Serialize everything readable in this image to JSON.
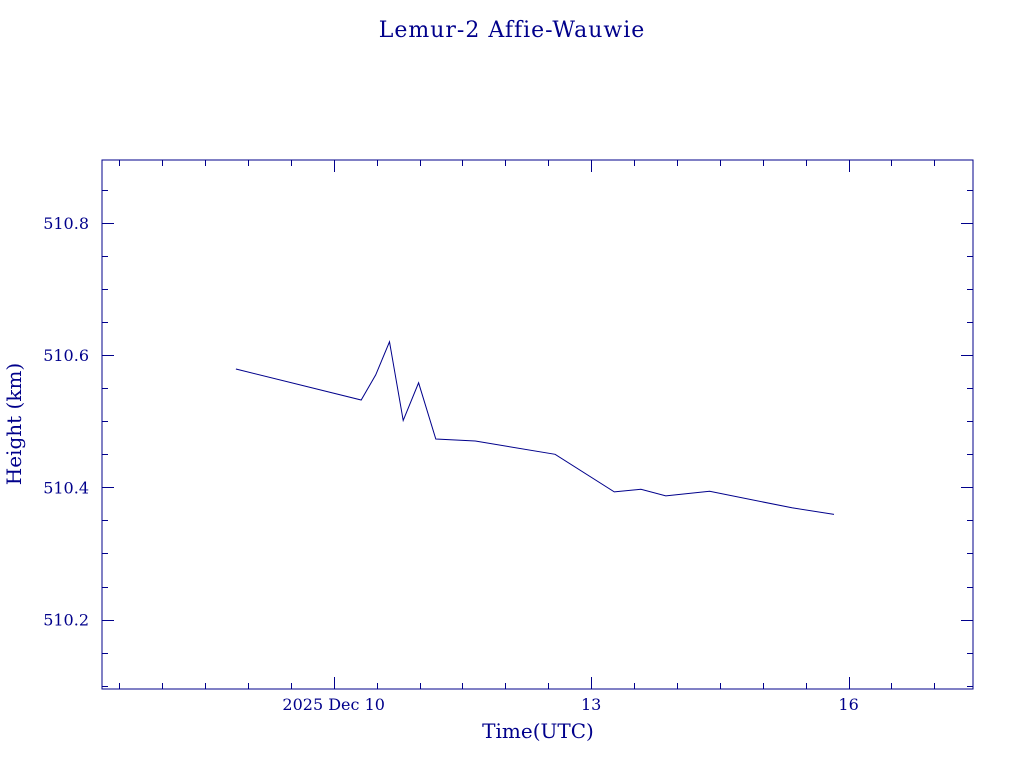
{
  "colors": {
    "ink": "#00008b",
    "background": "#ffffff"
  },
  "chart_data": {
    "type": "line",
    "title": "Lemur-2 Affie-Wauwie",
    "xlabel": "Time(UTC)",
    "ylabel": "Height (km)",
    "x_unit": "days, 2025 December",
    "xlim": [
      7.3,
      17.45
    ],
    "ylim": [
      510.095,
      510.895
    ],
    "x_ticks": [
      {
        "value": 10,
        "label": "2025 Dec 10"
      },
      {
        "value": 13,
        "label": "13"
      },
      {
        "value": 16,
        "label": "16"
      }
    ],
    "y_ticks": [
      {
        "value": 510.2,
        "label": "510.2"
      },
      {
        "value": 510.4,
        "label": "510.4"
      },
      {
        "value": 510.6,
        "label": "510.6"
      },
      {
        "value": 510.8,
        "label": "510.8"
      }
    ],
    "grid": false,
    "series": [
      {
        "x": [
          8.86,
          10.32,
          10.49,
          10.65,
          10.81,
          10.99,
          11.19,
          11.65,
          12.58,
          13.27,
          13.58,
          13.87,
          14.38,
          15.34,
          15.83
        ],
        "y": [
          510.579,
          510.532,
          510.57,
          510.62,
          510.501,
          510.558,
          510.473,
          510.47,
          510.45,
          510.393,
          510.397,
          510.387,
          510.394,
          510.369,
          510.359
        ]
      }
    ]
  }
}
